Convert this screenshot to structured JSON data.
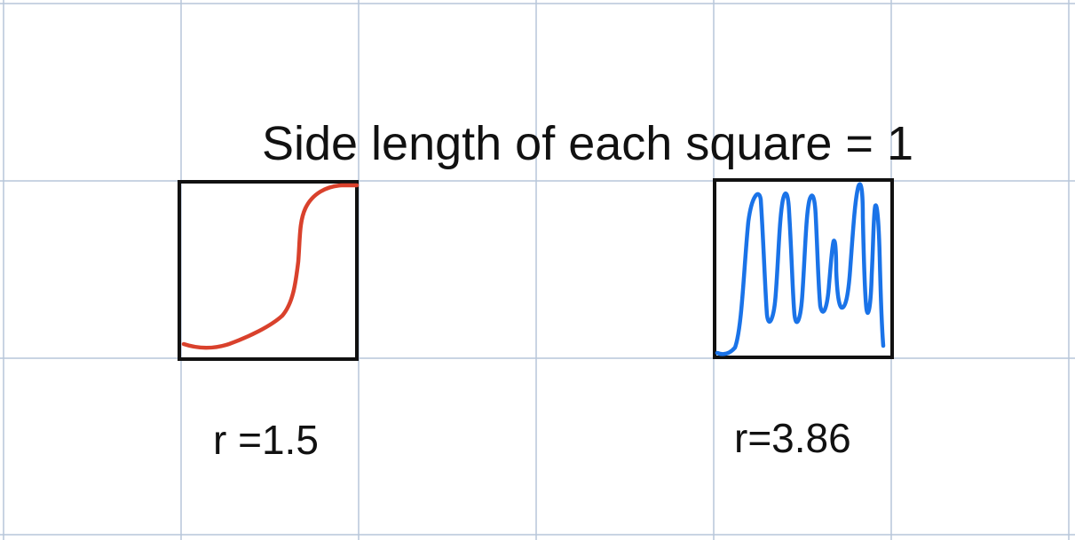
{
  "title": "Side length of each square = 1",
  "left_figure": {
    "label": "r =1.5",
    "curve_color": "#d9412c"
  },
  "right_figure": {
    "label": "r=3.86",
    "curve_color": "#1a73e8"
  },
  "grid_color": "#b7c6da",
  "square_border_color": "#111111"
}
